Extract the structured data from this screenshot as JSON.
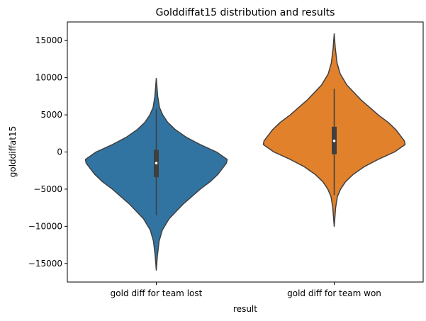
{
  "chart_data": {
    "type": "violin",
    "title": "Golddiffat15 distribution and results",
    "xlabel": "result",
    "ylabel": "golddiffat15",
    "ylim": [
      -17500,
      17500
    ],
    "yticks": [
      -15000,
      -10000,
      -5000,
      0,
      5000,
      10000,
      15000
    ],
    "ytick_labels": [
      "−15000",
      "−10000",
      "−5000",
      "0",
      "5000",
      "10000",
      "15000"
    ],
    "categories": [
      "gold diff for team lost",
      "gold diff for team won"
    ],
    "grid": false,
    "legend": "none",
    "series": [
      {
        "category": "gold diff for team lost",
        "color": "#3274a1",
        "min": -15900,
        "q1": -3400,
        "median": -1500,
        "q3": 300,
        "max": 9900,
        "whisker_low": -8500,
        "whisker_high": 5800,
        "density_profile": [
          [
            -15900,
            0.0
          ],
          [
            -14000,
            0.015
          ],
          [
            -12000,
            0.04
          ],
          [
            -10500,
            0.085
          ],
          [
            -9000,
            0.18
          ],
          [
            -7000,
            0.38
          ],
          [
            -5000,
            0.62
          ],
          [
            -4000,
            0.76
          ],
          [
            -3000,
            0.87
          ],
          [
            -2000,
            0.95
          ],
          [
            -1500,
            0.99
          ],
          [
            -1000,
            1.0
          ],
          [
            0,
            0.85
          ],
          [
            1000,
            0.62
          ],
          [
            2000,
            0.42
          ],
          [
            3000,
            0.27
          ],
          [
            4000,
            0.16
          ],
          [
            5000,
            0.09
          ],
          [
            6000,
            0.045
          ],
          [
            7500,
            0.02
          ],
          [
            9900,
            0.0
          ]
        ]
      },
      {
        "category": "gold diff for team won",
        "color": "#e1812c",
        "min": -10000,
        "q1": -300,
        "median": 1500,
        "q3": 3400,
        "max": 15900,
        "whisker_low": -5800,
        "whisker_high": 8500,
        "density_profile": [
          [
            -10000,
            0.0
          ],
          [
            -7500,
            0.02
          ],
          [
            -6000,
            0.045
          ],
          [
            -5000,
            0.09
          ],
          [
            -4000,
            0.16
          ],
          [
            -3000,
            0.27
          ],
          [
            -2000,
            0.42
          ],
          [
            -1000,
            0.62
          ],
          [
            0,
            0.85
          ],
          [
            1000,
            1.0
          ],
          [
            1500,
            0.99
          ],
          [
            2000,
            0.95
          ],
          [
            3000,
            0.87
          ],
          [
            4000,
            0.76
          ],
          [
            5000,
            0.62
          ],
          [
            7000,
            0.38
          ],
          [
            9000,
            0.18
          ],
          [
            10500,
            0.085
          ],
          [
            12000,
            0.04
          ],
          [
            14000,
            0.015
          ],
          [
            15900,
            0.0
          ]
        ]
      }
    ]
  }
}
